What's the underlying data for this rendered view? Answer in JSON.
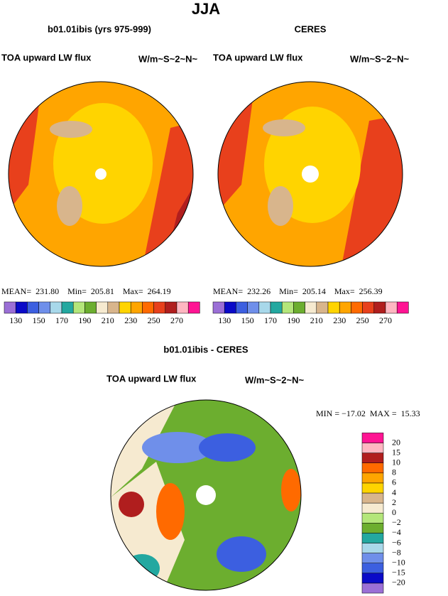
{
  "header": {
    "title": "JJA"
  },
  "panels": [
    {
      "title": "b01.01ibis (yrs 975-999)",
      "left_label": "TOA upward LW flux",
      "right_label": "W/m~S~2~N~",
      "stats": "MEAN=  231.80    Min=  205.81    Max=  264.19"
    },
    {
      "title": "CERES",
      "left_label": "TOA upward LW flux",
      "right_label": "W/m~S~2~N~",
      "stats": "MEAN=  232.26    Min=  205.14    Max=  256.39"
    },
    {
      "title": "b01.01ibis - CERES",
      "left_label": "TOA upward LW flux",
      "right_label": "W/m~S~2~N~",
      "stats": "MIN = −17.02  MAX =  15.33"
    }
  ],
  "colorbar_top": {
    "colors": [
      "#9b6fd6",
      "#0a0ac8",
      "#3c5fe0",
      "#6f8fea",
      "#a8d8ea",
      "#23a8a0",
      "#b4e67a",
      "#6cae2f",
      "#f6ead0",
      "#d8b58c",
      "#ffd400",
      "#ffa500",
      "#ff6a00",
      "#e8401c",
      "#b01e1e",
      "#ffb6c1",
      "#ff1493"
    ],
    "labels": [
      "130",
      "150",
      "170",
      "190",
      "210",
      "230",
      "250",
      "270"
    ]
  },
  "colorbar_diff": {
    "colors": [
      "#9b6fd6",
      "#0a0ac8",
      "#3c5fe0",
      "#6f8fea",
      "#a8d8ea",
      "#23a8a0",
      "#6cae2f",
      "#b4e67a",
      "#f6ead0",
      "#d8b58c",
      "#ffd400",
      "#ffa500",
      "#ff6a00",
      "#b01e1e",
      "#ffb6c1",
      "#ff1493"
    ],
    "labels": [
      "−20",
      "−15",
      "−10",
      "−8",
      "−6",
      "−4",
      "−2",
      "0",
      "2",
      "4",
      "6",
      "8",
      "10",
      "15",
      "20"
    ]
  }
}
